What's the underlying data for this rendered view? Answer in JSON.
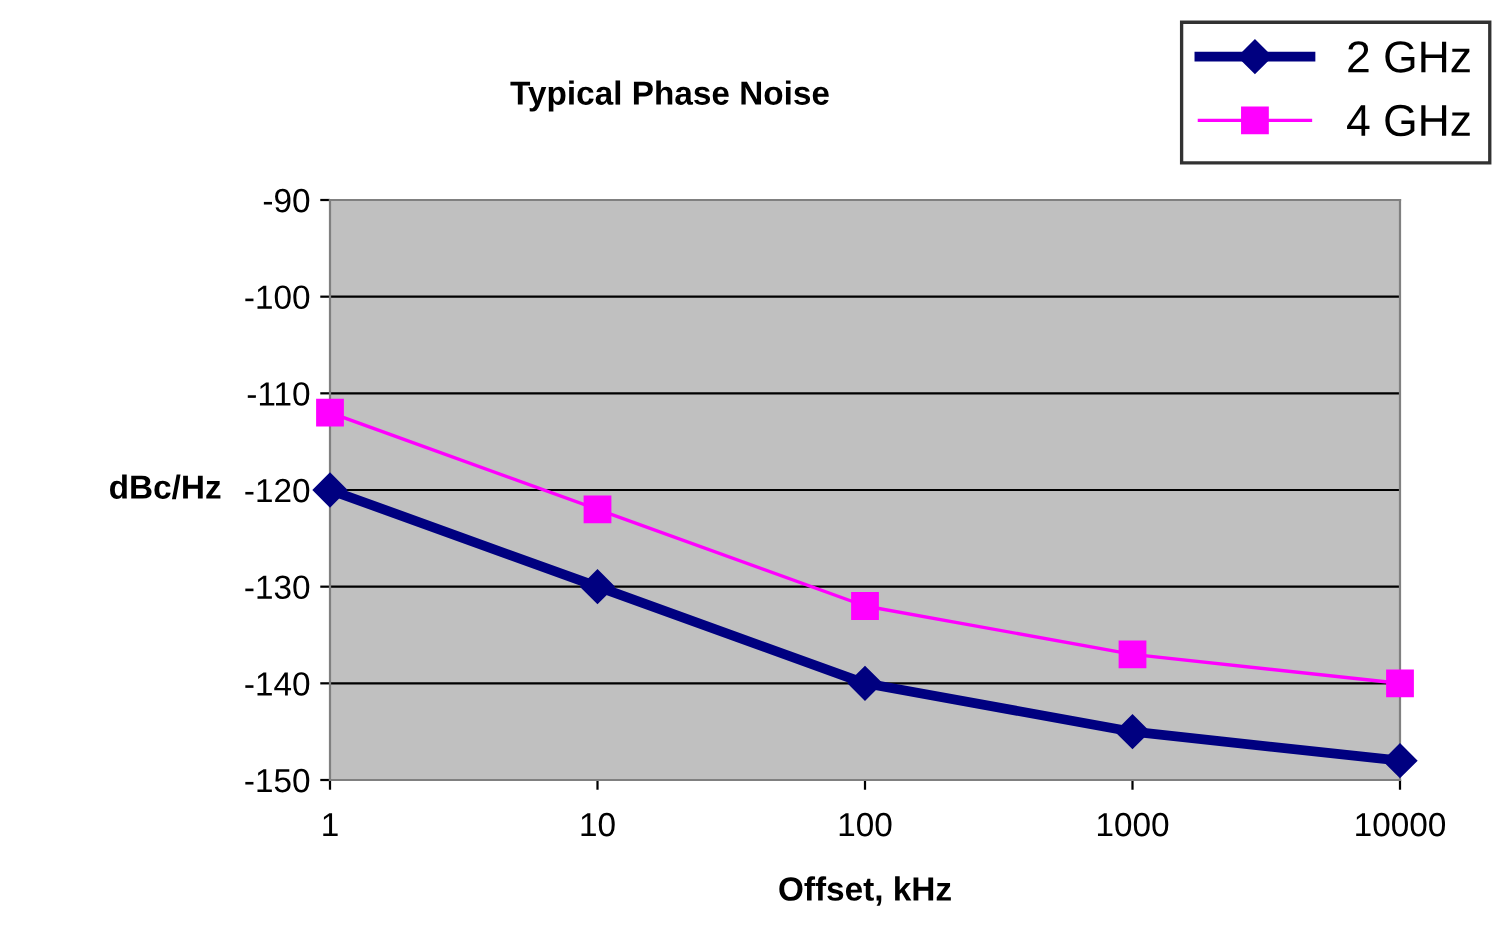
{
  "chart_data": {
    "type": "line",
    "title": "Typical Phase Noise",
    "xlabel": "Offset, kHz",
    "ylabel": "dBc/Hz",
    "categories": [
      "1",
      "10",
      "100",
      "1000",
      "10000"
    ],
    "series": [
      {
        "name": "2 GHz",
        "color": "#000080",
        "values": [
          -120,
          -130,
          -140,
          -145,
          -148
        ],
        "marker": "diamond"
      },
      {
        "name": "4 GHz",
        "color": "#ff00ff",
        "values": [
          -112,
          -122,
          -132,
          -137,
          -140
        ],
        "marker": "square"
      }
    ],
    "ylim": [
      -150,
      -90
    ],
    "yticks": [
      -150,
      -140,
      -130,
      -120,
      -110,
      -100,
      -90
    ],
    "grid": "y",
    "legend": "top right"
  }
}
